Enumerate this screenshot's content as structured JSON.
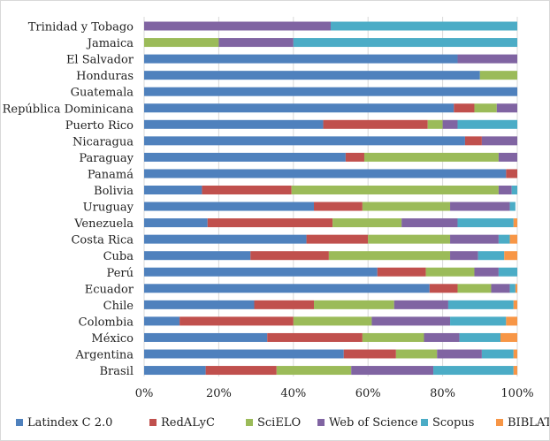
{
  "chart_data": {
    "type": "bar",
    "orientation": "horizontal",
    "stacked": "percent",
    "title": "",
    "xlabel": "",
    "ylabel": "",
    "xlim": [
      0,
      100
    ],
    "x_ticks": [
      "0%",
      "20%",
      "40%",
      "60%",
      "80%",
      "100%"
    ],
    "grid": "vertical",
    "legend_position": "bottom",
    "categories": [
      "Trinidad y Tobago",
      "Jamaica",
      "El Salvador",
      "Honduras",
      "Guatemala",
      "República Dominicana",
      "Puerto Rico",
      "Nicaragua",
      "Paraguay",
      "Panamá",
      "Bolivia",
      "Uruguay",
      "Venezuela",
      "Costa Rica",
      "Cuba",
      "Perú",
      "Ecuador",
      "Chile",
      "Colombia",
      "México",
      "Argentina",
      "Brasil"
    ],
    "series": [
      {
        "name": "Latindex C 2.0",
        "color": "#4F81BD",
        "values": [
          0,
          0,
          84,
          90,
          100,
          83,
          48,
          86,
          54,
          97,
          15.5,
          45.5,
          17,
          43.5,
          28.5,
          62.5,
          76.5,
          29.5,
          9.5,
          33,
          53.5,
          16.5
        ]
      },
      {
        "name": "RedALyC",
        "color": "#C0504D",
        "values": [
          0,
          0,
          0,
          0,
          0,
          5.5,
          28,
          4.5,
          5,
          3,
          24,
          13,
          33.5,
          16.5,
          21,
          13,
          7.5,
          16,
          30.5,
          25.5,
          14,
          19
        ]
      },
      {
        "name": "SciELO",
        "color": "#9BBB59",
        "values": [
          0,
          20,
          0,
          10,
          0,
          6,
          4,
          0,
          36,
          0,
          55.5,
          23.5,
          18.5,
          22,
          32.5,
          13,
          9,
          21.5,
          21,
          16.5,
          11,
          20
        ]
      },
      {
        "name": "Web of Science",
        "color": "#8064A2",
        "values": [
          50,
          20,
          16,
          0,
          0,
          5.5,
          4,
          9.5,
          5,
          0,
          3.5,
          16,
          15,
          13,
          7.5,
          6.5,
          5,
          14.5,
          21,
          9.5,
          12,
          22
        ]
      },
      {
        "name": "Scopus",
        "color": "#4BACC6",
        "values": [
          50,
          60,
          0,
          0,
          0,
          0,
          16,
          0,
          0,
          0,
          1.5,
          1.5,
          15,
          3,
          7,
          5,
          1.5,
          17.5,
          15,
          11,
          8.5,
          21.5
        ]
      },
      {
        "name": "BIBLAT",
        "color": "#F79646",
        "values": [
          0,
          0,
          0,
          0,
          0,
          0,
          0,
          0,
          0,
          0,
          0,
          0,
          1,
          2,
          3.5,
          0,
          0.5,
          1,
          3,
          4.5,
          1,
          1
        ]
      }
    ]
  }
}
